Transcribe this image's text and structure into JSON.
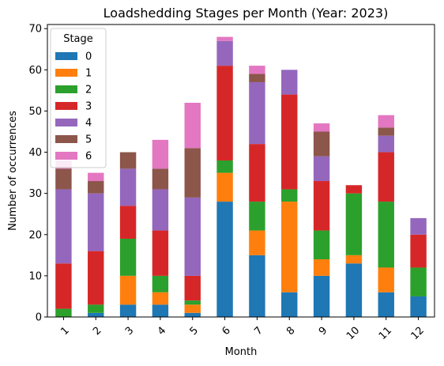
{
  "chart_data": {
    "type": "bar",
    "stacked": true,
    "title": "Loadshedding Stages per Month (Year: 2023)",
    "xlabel": "Month",
    "ylabel": "Number of occurrences",
    "categories": [
      "1",
      "2",
      "3",
      "4",
      "5",
      "6",
      "7",
      "8",
      "9",
      "10",
      "11",
      "12"
    ],
    "ylim": [
      0,
      71
    ],
    "yticks": [
      0,
      10,
      20,
      30,
      40,
      50,
      60,
      70
    ],
    "legend": {
      "title": "Stage",
      "placement": "top-left"
    },
    "series": [
      {
        "name": "0",
        "color": "#1f77b4",
        "values": [
          0,
          1,
          3,
          3,
          1,
          28,
          15,
          6,
          10,
          13,
          6,
          5
        ]
      },
      {
        "name": "1",
        "color": "#ff7f0e",
        "values": [
          0,
          0,
          7,
          3,
          2,
          7,
          6,
          22,
          4,
          2,
          6,
          0
        ]
      },
      {
        "name": "2",
        "color": "#2ca02c",
        "values": [
          2,
          2,
          9,
          4,
          1,
          3,
          7,
          3,
          7,
          15,
          16,
          7
        ]
      },
      {
        "name": "3",
        "color": "#d62728",
        "values": [
          11,
          13,
          8,
          11,
          6,
          23,
          14,
          23,
          12,
          2,
          12,
          8
        ]
      },
      {
        "name": "4",
        "color": "#9467bd",
        "values": [
          18,
          14,
          9,
          10,
          19,
          6,
          15,
          6,
          6,
          0,
          4,
          4
        ]
      },
      {
        "name": "5",
        "color": "#8c564b",
        "values": [
          5,
          3,
          4,
          5,
          12,
          0,
          2,
          0,
          6,
          0,
          2,
          0
        ]
      },
      {
        "name": "6",
        "color": "#e377c2",
        "values": [
          2,
          2,
          0,
          7,
          11,
          1,
          2,
          0,
          2,
          0,
          3,
          0
        ]
      }
    ]
  }
}
